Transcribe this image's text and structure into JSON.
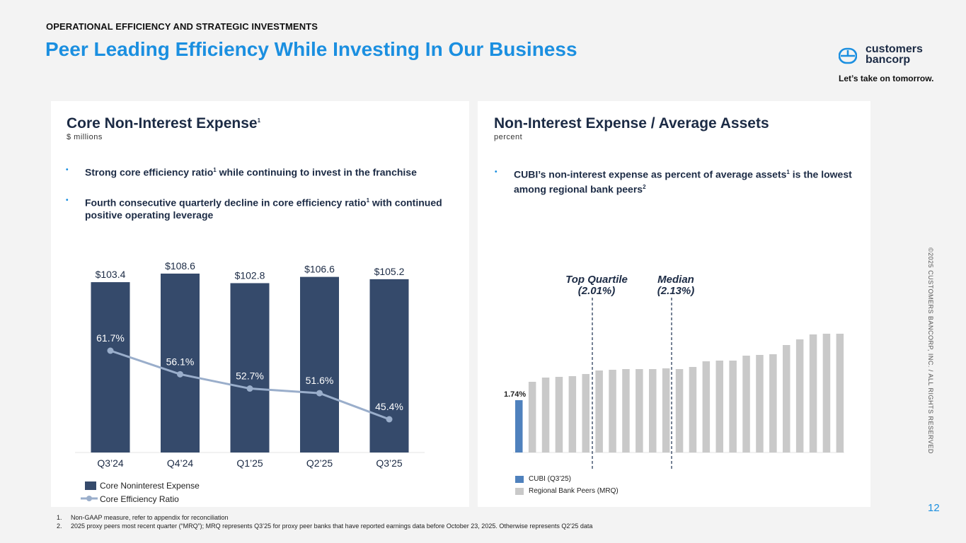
{
  "header": {
    "section_label": "OPERATIONAL EFFICIENCY AND STRATEGIC INVESTMENTS",
    "title": "Peer Leading Efficiency While Investing In Our Business"
  },
  "brand": {
    "name_line1": "customers",
    "name_line2": "bancorp",
    "tagline": "Let’s take on tomorrow.",
    "logo_icon": "customers-bancorp-logo-icon",
    "colors": {
      "accent": "#1b8fe0",
      "navy": "#354a6b",
      "line": "#9aaecb",
      "cubi": "#4f81bd",
      "peer": "#c9c9c9"
    }
  },
  "left_panel": {
    "title": "Core Non-Interest Expense",
    "title_sup": "1",
    "subtitle": "$ millions",
    "bullets": [
      {
        "pre": "Strong core efficiency ratio",
        "sup": "1",
        "post": " while continuing to invest in the franchise"
      },
      {
        "pre": "Fourth consecutive quarterly decline in core efficiency ratio",
        "sup": "1",
        "post": " with continued positive operating leverage"
      }
    ],
    "legend": {
      "bar": "Core Noninterest Expense",
      "line": "Core Efficiency Ratio"
    }
  },
  "right_panel": {
    "title": "Non-Interest Expense / Average Assets",
    "subtitle": "percent",
    "bullets": [
      {
        "pre": "CUBI’s non-interest expense as percent of average assets",
        "sup": "1",
        "post": " is the lowest among regional bank peers",
        "sup2": "2"
      }
    ],
    "legend": {
      "cubi": "CUBI (Q3’25)",
      "peers": "Regional Bank Peers (MRQ)"
    }
  },
  "chart_data": [
    {
      "type": "bar",
      "title": "Core Non-Interest Expense",
      "categories": [
        "Q3’24",
        "Q4’24",
        "Q1’25",
        "Q2’25",
        "Q3’25"
      ],
      "series": [
        {
          "name": "Core Noninterest Expense",
          "type": "bar",
          "values": [
            103.4,
            108.6,
            102.8,
            106.6,
            105.2
          ],
          "labels": [
            "$103.4",
            "$108.6",
            "$102.8",
            "$106.6",
            "$105.2"
          ]
        },
        {
          "name": "Core Efficiency Ratio",
          "type": "line",
          "values": [
            61.7,
            56.1,
            52.7,
            51.6,
            45.4
          ],
          "labels": [
            "61.7%",
            "56.1%",
            "52.7%",
            "51.6%",
            "45.4%"
          ]
        }
      ]
    },
    {
      "type": "bar",
      "title": "Non-Interest Expense / Average Assets",
      "ylabel": "percent",
      "cubi": {
        "name": "CUBI (Q3’25)",
        "value": 1.74,
        "label": "1.74%"
      },
      "peers": {
        "name": "Regional Bank Peers (MRQ)",
        "values": [
          2.0,
          2.06,
          2.07,
          2.08,
          2.11,
          2.16,
          2.17,
          2.18,
          2.18,
          2.18,
          2.19,
          2.18,
          2.21,
          2.29,
          2.3,
          2.3,
          2.37,
          2.38,
          2.39,
          2.52,
          2.6,
          2.67,
          2.68,
          2.68
        ]
      },
      "reference_lines": [
        {
          "name": "Top Quartile",
          "label": "Top Quartile",
          "value_label": "(2.01%)",
          "value": 2.01
        },
        {
          "name": "Median",
          "label": "Median",
          "value_label": "(2.13%)",
          "value": 2.13
        }
      ]
    }
  ],
  "footnotes": [
    {
      "num": "1.",
      "text": "Non-GAAP measure, refer to appendix for reconciliation"
    },
    {
      "num": "2.",
      "text": "2025 proxy peers most recent quarter (“MRQ”); MRQ represents Q3’25 for proxy peer banks that have reported earnings data before October 23, 2025. Otherwise represents Q2’25 data"
    }
  ],
  "side_text": "©2025 CUSTOMERS BANCORP, INC. / ALL RIGHTS RESERVED",
  "page_number": "12"
}
